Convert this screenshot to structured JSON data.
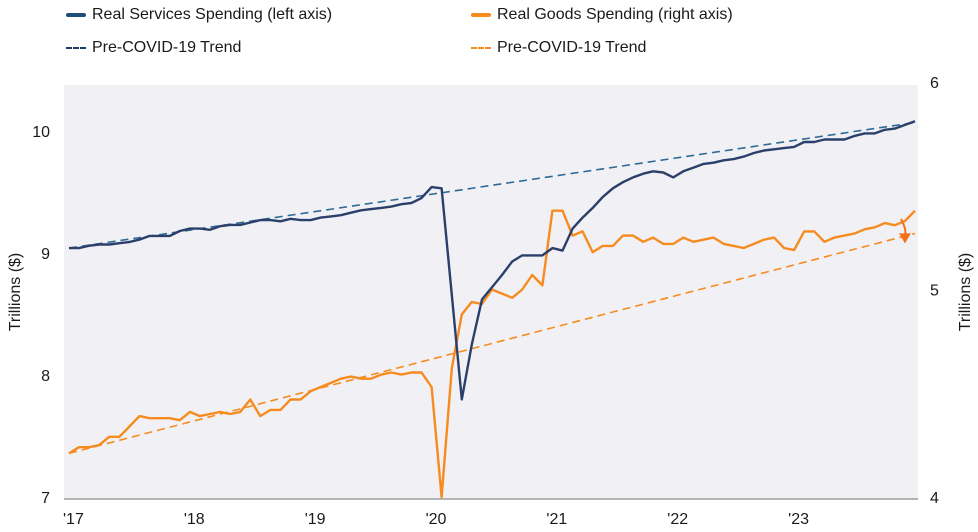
{
  "chart_data": {
    "type": "line",
    "title": "",
    "xlabel": "",
    "ylabel_left": "Trillions ($)",
    "ylabel_right": "Trillions ($)",
    "ylim_left": [
      7,
      10.4
    ],
    "ylim_right": [
      4,
      6
    ],
    "yticks_left": [
      "10",
      "9",
      "8",
      "7"
    ],
    "yticks_left_values": [
      10,
      9,
      8,
      7
    ],
    "yticks_right": [
      "6",
      "5",
      "4"
    ],
    "yticks_right_values": [
      6,
      5,
      4
    ],
    "xticks": [
      "'17",
      "'18",
      "'19",
      "'20",
      "'21",
      "'22",
      "'23"
    ],
    "xticks_values": [
      2017,
      2018,
      2019,
      2020,
      2021,
      2022,
      2023
    ],
    "x_range": [
      2017.0,
      2024.0
    ],
    "grid": false,
    "legend_position": "top",
    "colors": {
      "services": "#2b3f6b",
      "services_trend": "#2e6a96",
      "goods": "#f68b1f",
      "goods_trend": "#f68b1f",
      "plot_bg": "#f1f1f5",
      "annotation_arrow": "#f2711c"
    },
    "series": [
      {
        "name": "Real Services Spending (left axis)",
        "axis": "left",
        "style": "solid",
        "x": [
          2017.0,
          2017.083,
          2017.167,
          2017.25,
          2017.333,
          2017.417,
          2017.5,
          2017.583,
          2017.667,
          2017.75,
          2017.833,
          2017.917,
          2018.0,
          2018.083,
          2018.167,
          2018.25,
          2018.333,
          2018.417,
          2018.5,
          2018.583,
          2018.667,
          2018.75,
          2018.833,
          2018.917,
          2019.0,
          2019.083,
          2019.167,
          2019.25,
          2019.333,
          2019.417,
          2019.5,
          2019.583,
          2019.667,
          2019.75,
          2019.833,
          2019.917,
          2020.0,
          2020.083,
          2020.25,
          2020.333,
          2020.417,
          2020.5,
          2020.583,
          2020.667,
          2020.75,
          2020.833,
          2020.917,
          2021.0,
          2021.083,
          2021.167,
          2021.25,
          2021.333,
          2021.417,
          2021.5,
          2021.583,
          2021.667,
          2021.75,
          2021.833,
          2021.917,
          2022.0,
          2022.083,
          2022.167,
          2022.25,
          2022.333,
          2022.417,
          2022.5,
          2022.583,
          2022.667,
          2022.75,
          2022.833,
          2022.917,
          2023.0,
          2023.083,
          2023.167,
          2023.25,
          2023.333,
          2023.417,
          2023.5,
          2023.583,
          2023.667,
          2023.75,
          2023.833,
          2023.917,
          2024.0
        ],
        "values": [
          9.04,
          9.04,
          9.06,
          9.07,
          9.07,
          9.08,
          9.09,
          9.11,
          9.14,
          9.14,
          9.14,
          9.18,
          9.2,
          9.2,
          9.19,
          9.22,
          9.23,
          9.23,
          9.25,
          9.27,
          9.27,
          9.26,
          9.28,
          9.27,
          9.27,
          9.29,
          9.3,
          9.31,
          9.33,
          9.35,
          9.36,
          9.37,
          9.38,
          9.4,
          9.41,
          9.45,
          9.54,
          9.53,
          7.8,
          8.25,
          8.62,
          8.72,
          8.82,
          8.93,
          8.98,
          8.98,
          8.98,
          9.04,
          9.02,
          9.2,
          9.29,
          9.37,
          9.46,
          9.53,
          9.58,
          9.62,
          9.65,
          9.67,
          9.66,
          9.62,
          9.67,
          9.7,
          9.73,
          9.74,
          9.76,
          9.77,
          9.79,
          9.82,
          9.84,
          9.85,
          9.86,
          9.87,
          9.91,
          9.91,
          9.93,
          9.93,
          9.93,
          9.96,
          9.98,
          9.98,
          10.01,
          10.02,
          10.05,
          10.08
        ]
      },
      {
        "name": "Pre-COVID-19 Trend (services)",
        "axis": "left",
        "style": "dashed",
        "x": [
          2017.0,
          2024.0
        ],
        "values": [
          9.04,
          10.07
        ]
      },
      {
        "name": "Real Goods Spending (right axis)",
        "axis": "right",
        "style": "solid",
        "x": [
          2017.0,
          2017.083,
          2017.167,
          2017.25,
          2017.333,
          2017.417,
          2017.5,
          2017.583,
          2017.667,
          2017.75,
          2017.833,
          2017.917,
          2018.0,
          2018.083,
          2018.167,
          2018.25,
          2018.333,
          2018.417,
          2018.5,
          2018.583,
          2018.667,
          2018.75,
          2018.833,
          2018.917,
          2019.0,
          2019.083,
          2019.167,
          2019.25,
          2019.333,
          2019.417,
          2019.5,
          2019.583,
          2019.667,
          2019.75,
          2019.833,
          2019.917,
          2020.0,
          2020.083,
          2020.167,
          2020.25,
          2020.333,
          2020.417,
          2020.5,
          2020.583,
          2020.667,
          2020.75,
          2020.833,
          2020.917,
          2021.0,
          2021.083,
          2021.167,
          2021.25,
          2021.333,
          2021.417,
          2021.5,
          2021.583,
          2021.667,
          2021.75,
          2021.833,
          2021.917,
          2022.0,
          2022.083,
          2022.167,
          2022.25,
          2022.333,
          2022.417,
          2022.5,
          2022.583,
          2022.667,
          2022.75,
          2022.833,
          2022.917,
          2023.0,
          2023.083,
          2023.167,
          2023.25,
          2023.333,
          2023.417,
          2023.5,
          2023.583,
          2023.667,
          2023.75,
          2023.833,
          2023.917,
          2024.0
        ],
        "values": [
          4.21,
          4.24,
          4.24,
          4.25,
          4.29,
          4.29,
          4.34,
          4.39,
          4.38,
          4.38,
          4.38,
          4.37,
          4.41,
          4.39,
          4.4,
          4.41,
          4.4,
          4.41,
          4.47,
          4.39,
          4.42,
          4.42,
          4.47,
          4.47,
          4.51,
          4.53,
          4.55,
          4.57,
          4.58,
          4.57,
          4.57,
          4.59,
          4.6,
          4.59,
          4.6,
          4.6,
          4.53,
          4.0,
          4.62,
          4.88,
          4.94,
          4.93,
          5.0,
          4.98,
          4.96,
          5.0,
          5.07,
          5.02,
          5.38,
          5.38,
          5.26,
          5.28,
          5.18,
          5.21,
          5.21,
          5.26,
          5.26,
          5.23,
          5.25,
          5.22,
          5.22,
          5.25,
          5.23,
          5.24,
          5.25,
          5.22,
          5.21,
          5.2,
          5.22,
          5.24,
          5.25,
          5.2,
          5.19,
          5.28,
          5.28,
          5.23,
          5.25,
          5.26,
          5.27,
          5.29,
          5.3,
          5.32,
          5.31,
          5.33,
          5.38
        ]
      },
      {
        "name": "Pre-COVID-19 Trend (goods)",
        "axis": "right",
        "style": "dashed",
        "x": [
          2017.0,
          2024.0
        ],
        "values": [
          4.21,
          5.27
        ]
      }
    ],
    "annotations": [
      {
        "type": "arrow",
        "description": "downward arrow from goods spending toward pre-COVID trend",
        "x": 2023.95,
        "from_value": 5.33,
        "to_value": 5.29,
        "axis": "right"
      }
    ]
  },
  "legend": {
    "items": [
      {
        "label": "Real Services Spending (left axis)",
        "style": "solid",
        "color": "#1f4e79"
      },
      {
        "label": "Real Goods Spending (right axis)",
        "style": "solid",
        "color": "#f68b1f"
      },
      {
        "label": "Pre-COVID-19 Trend",
        "style": "dashed",
        "color": "#1f3f66"
      },
      {
        "label": "Pre-COVID-19 Trend",
        "style": "dashed",
        "color": "#f68b1f"
      }
    ]
  }
}
